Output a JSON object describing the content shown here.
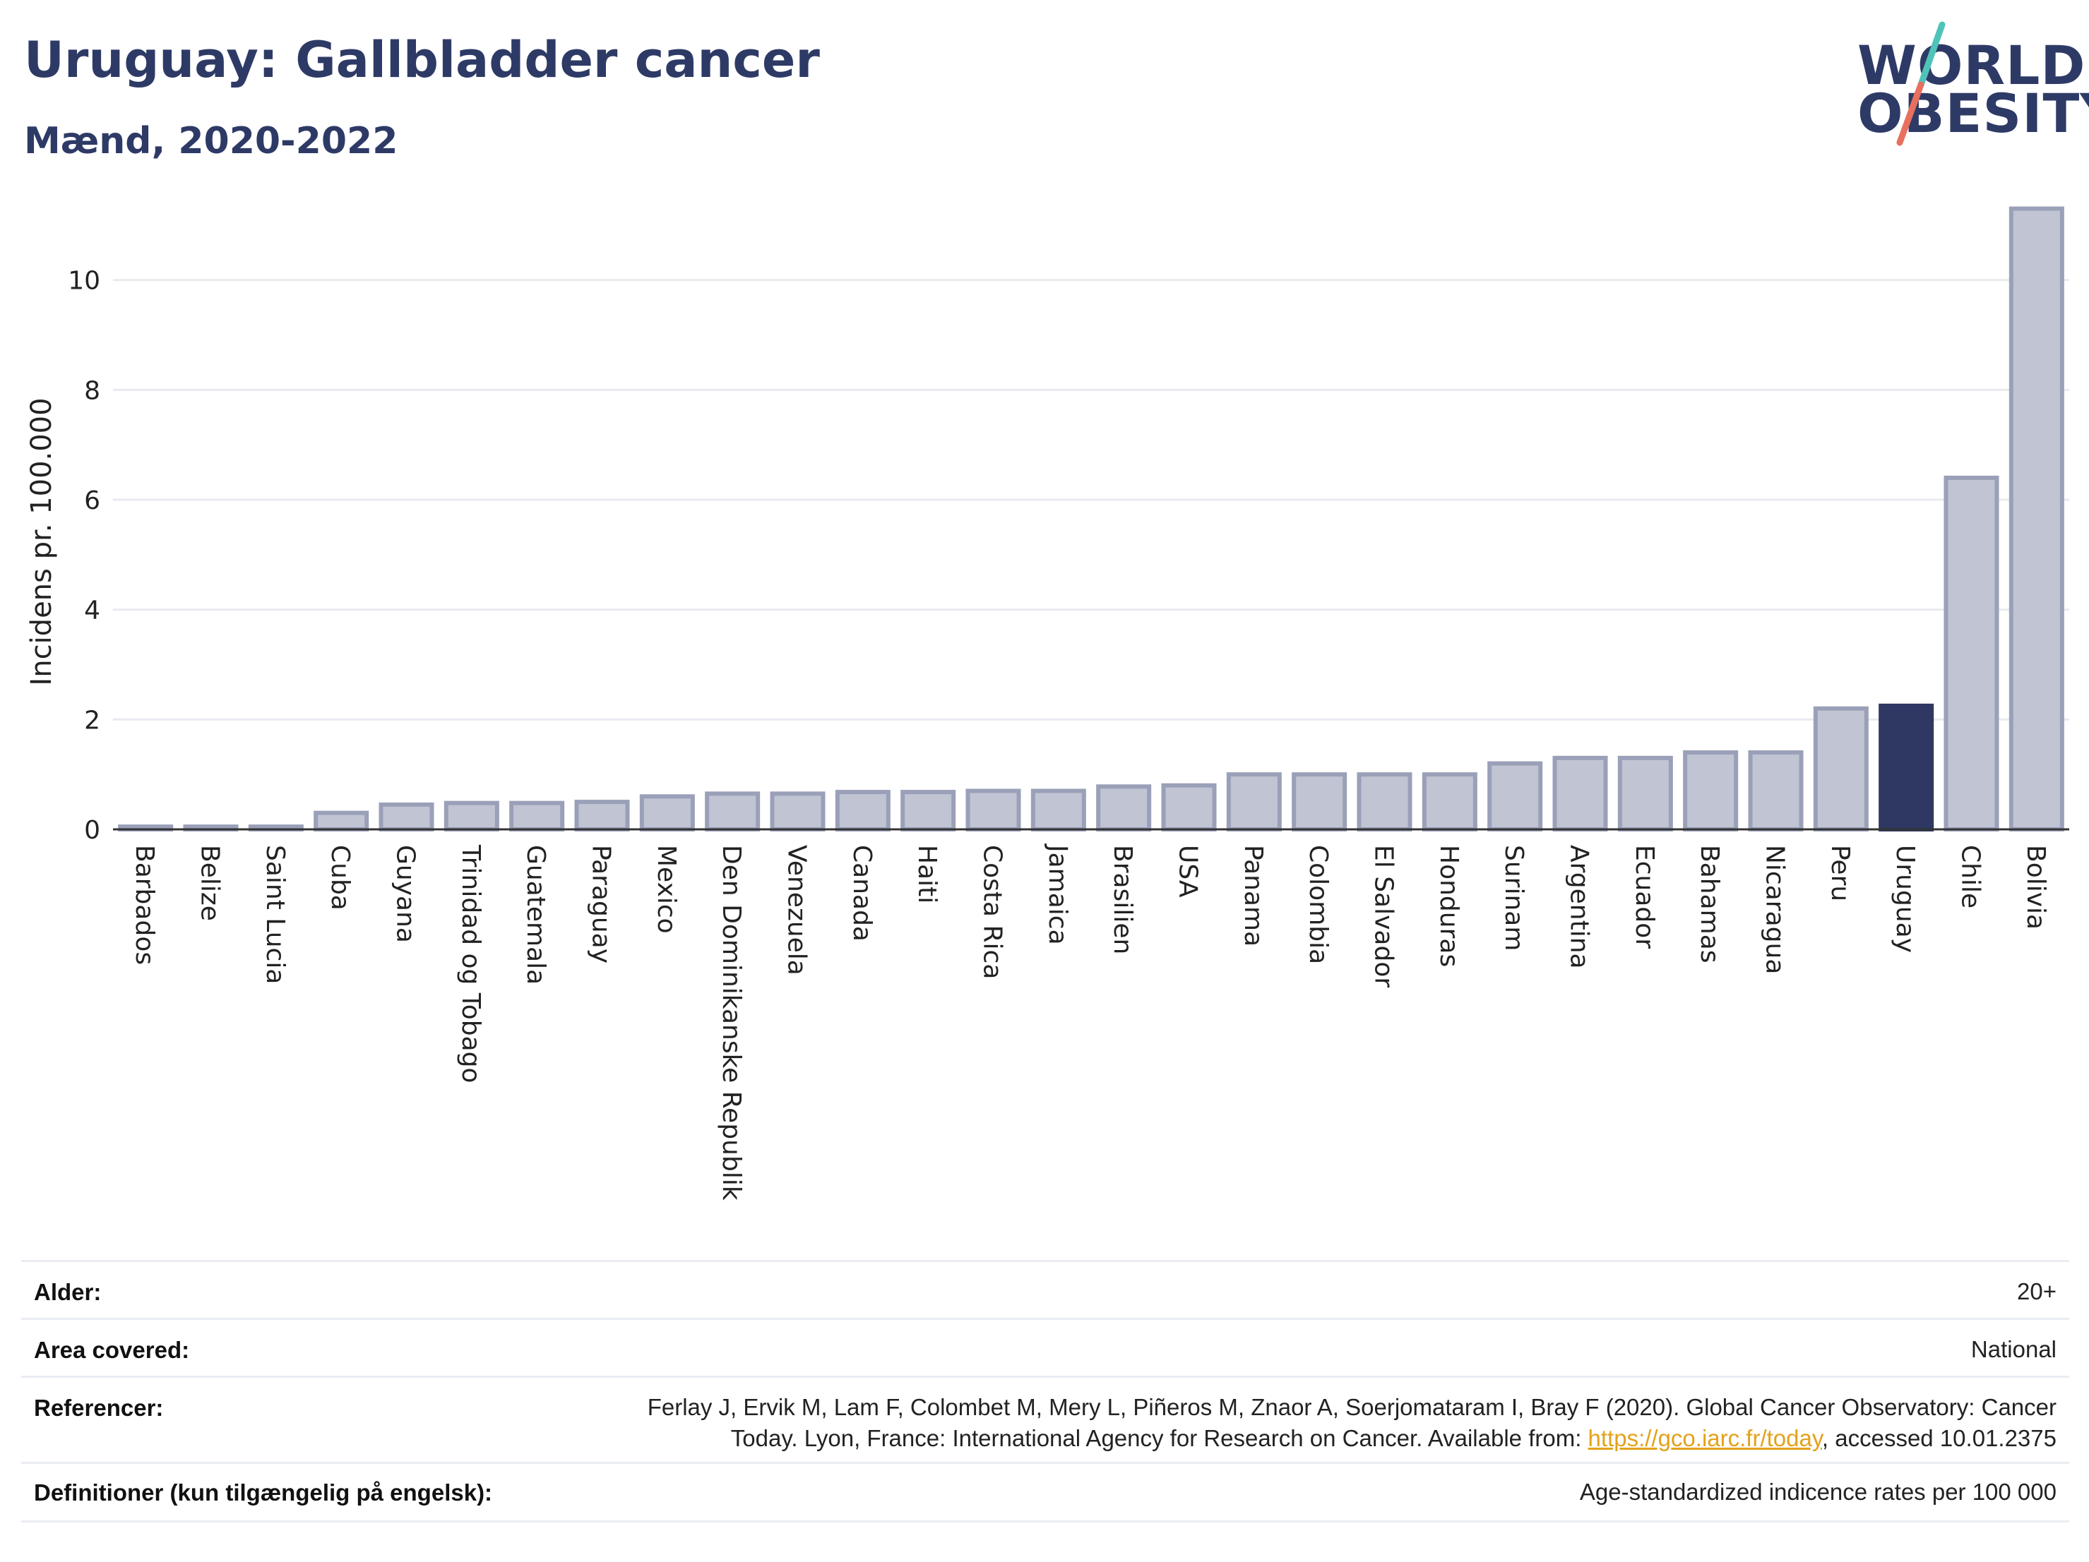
{
  "header": {
    "title": "Uruguay: Gallbladder cancer",
    "subtitle": "Mænd, 2020-2022"
  },
  "logo": {
    "line1": "WORLD",
    "line2": "OBESITY",
    "slash_colors": [
      "#4fc3b9",
      "#e8705f"
    ]
  },
  "chart_data": {
    "type": "bar",
    "ylabel": "Incidens pr. 100.000",
    "ylim": [
      0,
      11.5
    ],
    "yticks": [
      0,
      2,
      4,
      6,
      8,
      10
    ],
    "grid": true,
    "highlight": "Uruguay",
    "colors": {
      "bar": "#c0c4d3",
      "bar_border": "#9aa0b8",
      "highlight": "#2e3862",
      "grid": "#e8eaf0",
      "axis": "#333333"
    },
    "categories": [
      "Barbados",
      "Belize",
      "Saint Lucia",
      "Cuba",
      "Guyana",
      "Trinidad og Tobago",
      "Guatemala",
      "Paraguay",
      "Mexico",
      "Den Dominikanske Republik",
      "Venezuela",
      "Canada",
      "Haiti",
      "Costa Rica",
      "Jamaica",
      "Brasilien",
      "USA",
      "Panama",
      "Colombia",
      "El Salvador",
      "Honduras",
      "Surinam",
      "Argentina",
      "Ecuador",
      "Bahamas",
      "Nicaragua",
      "Peru",
      "Uruguay",
      "Chile",
      "Bolivia"
    ],
    "values": [
      0.05,
      0.05,
      0.05,
      0.3,
      0.45,
      0.48,
      0.48,
      0.5,
      0.6,
      0.65,
      0.65,
      0.68,
      0.68,
      0.7,
      0.7,
      0.78,
      0.8,
      1.0,
      1.0,
      1.0,
      1.0,
      1.2,
      1.3,
      1.3,
      1.4,
      1.4,
      2.2,
      2.25,
      6.4,
      11.3
    ]
  },
  "meta": {
    "age_label": "Alder:",
    "age_value": "20+",
    "area_label": "Area covered:",
    "area_value": "National",
    "ref_label": "Referencer:",
    "ref_line1": "Ferlay J, Ervik M, Lam F, Colombet M, Mery L, Piñeros M, Znaor A, Soerjomataram I, Bray F (2020). Global Cancer Observatory: Cancer",
    "ref_line2_pre": "Today. Lyon, France: International Agency for Research on Cancer. Available from: ",
    "ref_link": "https://gco.iarc.fr/today",
    "ref_line2_post": ", accessed 10.01.2375",
    "def_label": "Definitioner (kun tilgængelig på engelsk):",
    "def_value": "Age-standardized indicence rates per 100 000"
  }
}
